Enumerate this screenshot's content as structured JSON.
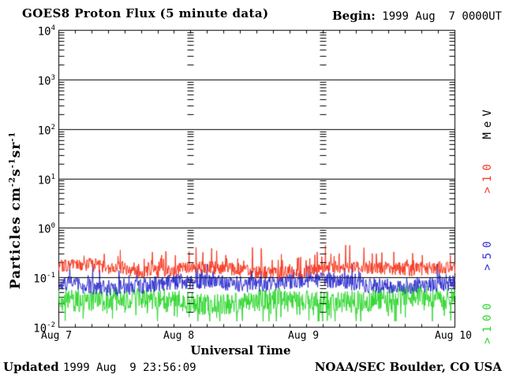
{
  "header": {
    "title": "GOES8 Proton Flux (5 minute data)",
    "begin_label": "Begin:",
    "begin_value": " 1999 Aug  7 0000UT"
  },
  "footer": {
    "updated_label": "Updated",
    "updated_value": "1999 Aug  9 23:56:09",
    "credit": "NOAA/SEC Boulder, CO USA"
  },
  "chart_data": {
    "type": "line",
    "title": "GOES8 Proton Flux (5 minute data)",
    "xlabel": "Universal Time",
    "ylabel": "Particles cm-2 s-1 sr-1",
    "ylabel_parts": [
      {
        "text": "Particles cm",
        "sup": false
      },
      {
        "text": "-2",
        "sup": true
      },
      {
        "text": "s",
        "sup": false
      },
      {
        "text": "-1",
        "sup": true
      },
      {
        "text": "sr",
        "sup": false
      },
      {
        "text": "-1",
        "sup": true
      }
    ],
    "y_tick_base": "10",
    "y_tick_exponents": [
      4,
      3,
      2,
      1,
      0,
      -1,
      -2
    ],
    "ylim_log10": [
      -2,
      4
    ],
    "x_ticks": [
      "Aug 7",
      "Aug 8",
      "Aug 9",
      "Aug 10"
    ],
    "x_days": 3,
    "x_range": "1999 Aug 7 0000 UT to 1999 Aug 10 0000 UT",
    "cadence_minutes": 5,
    "samples_per_series": 864,
    "ticks_per_day_3hour": 8,
    "grid": {
      "horizontal_decade_lines": true,
      "day_boundary_dashed_ladders": true,
      "log_minor_ticks": true
    },
    "legend_title": "MeV",
    "legend_position": "right-rotated",
    "series": [
      {
        "label": ">10",
        "threshold_mev": 10,
        "color": "#f83820",
        "baseline_log10_flux": -0.82,
        "noise_halfwidth_dex": 0.14,
        "spike_probability": 0.1,
        "spike_max_dex": 0.4,
        "spike_direction": 1,
        "clamp_log10": [
          -1.1,
          -0.34
        ],
        "typical_flux": 0.15,
        "approx_flux_range": [
          0.08,
          0.46
        ]
      },
      {
        "label": ">50",
        "threshold_mev": 50,
        "color": "#3030d0",
        "baseline_log10_flux": -1.12,
        "noise_halfwidth_dex": 0.16,
        "spike_probability": 0.08,
        "spike_max_dex": 0.35,
        "spike_direction": 1,
        "clamp_log10": [
          -1.52,
          -0.72
        ],
        "typical_flux": 0.076,
        "approx_flux_range": [
          0.03,
          0.19
        ]
      },
      {
        "label": ">100",
        "threshold_mev": 100,
        "color": "#30d830",
        "baseline_log10_flux": -1.45,
        "noise_halfwidth_dex": 0.22,
        "spike_probability": 0.15,
        "spike_max_dex": 0.4,
        "spike_direction": -1,
        "clamp_log10": [
          -1.88,
          -1.05
        ],
        "typical_flux": 0.035,
        "approx_flux_range": [
          0.013,
          0.09
        ]
      }
    ],
    "colors": {
      "axis": "#000000",
      "background": "#ffffff"
    }
  }
}
